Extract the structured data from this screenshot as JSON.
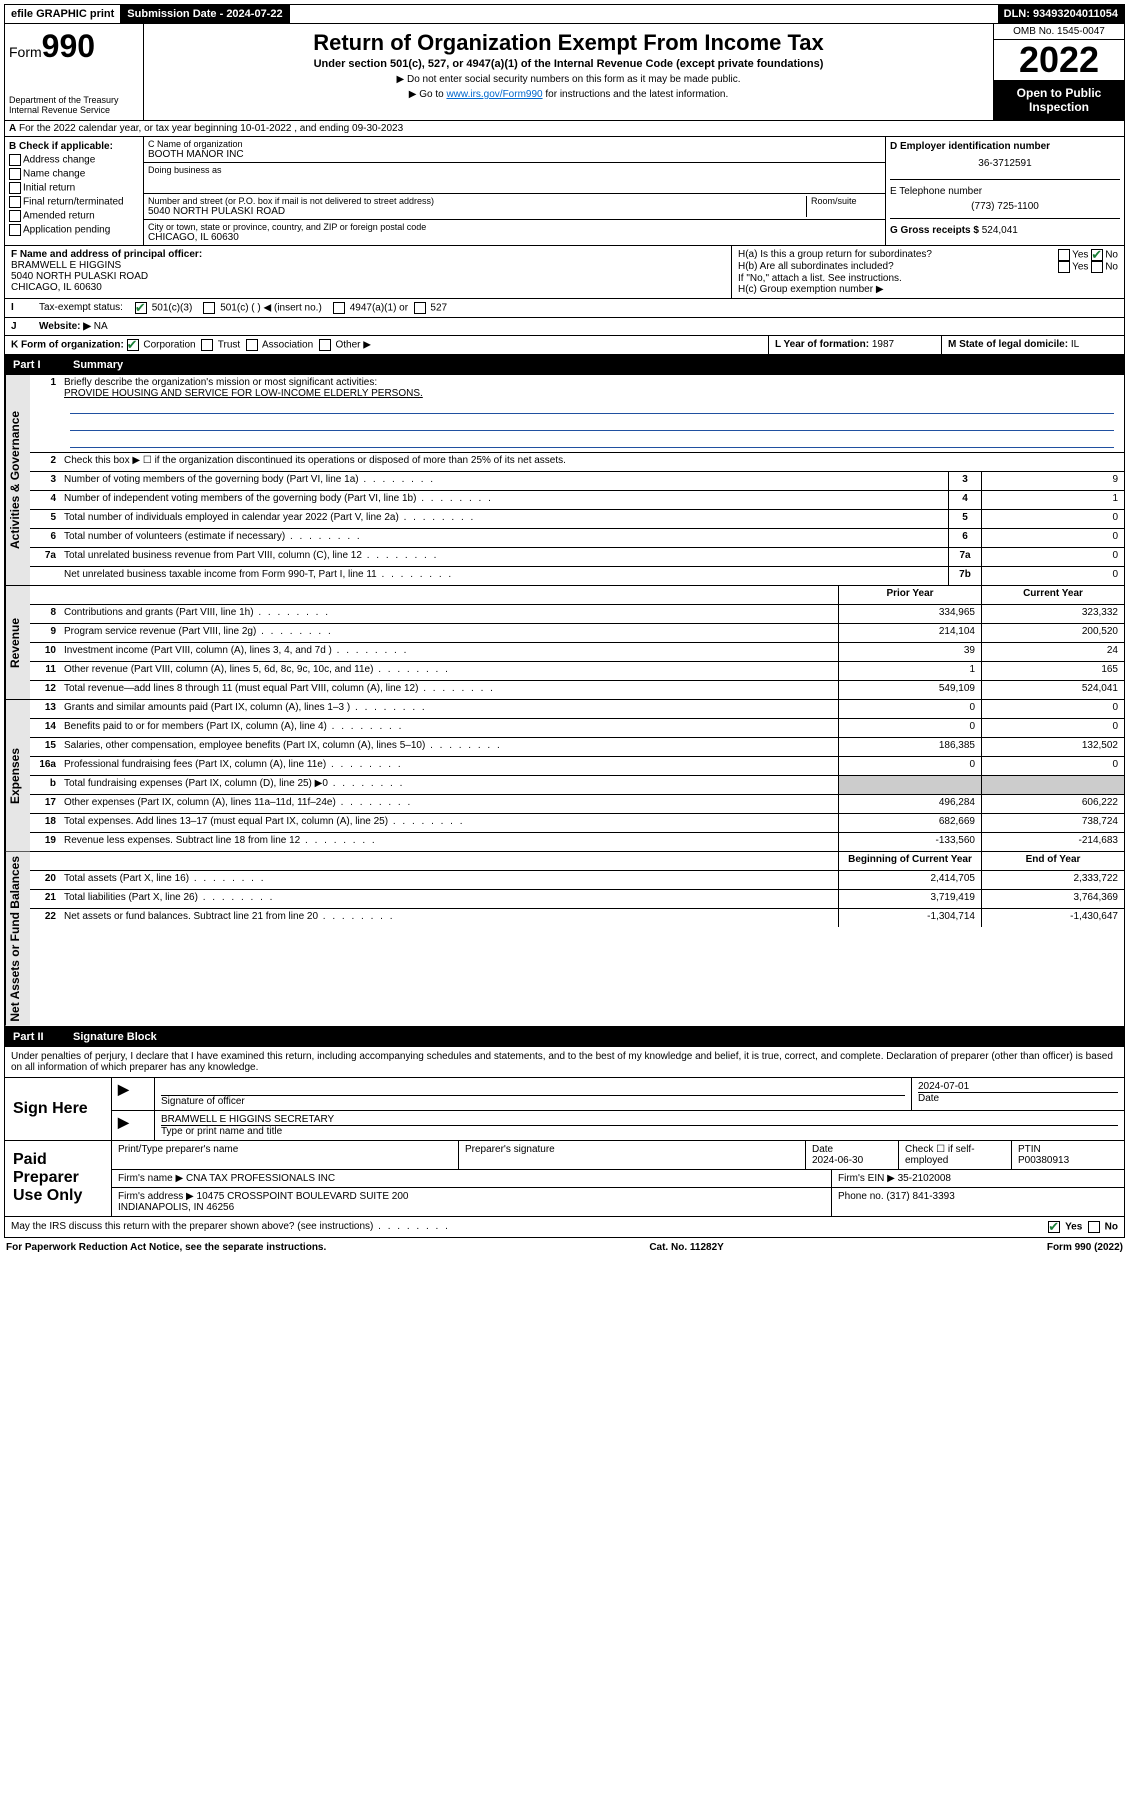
{
  "topbar": {
    "efile": "efile GRAPHIC print",
    "subdate_label": "Submission Date - 2024-07-22",
    "dln": "DLN: 93493204011054"
  },
  "header": {
    "form_prefix": "Form",
    "form_num": "990",
    "dept": "Department of the Treasury Internal Revenue Service",
    "title": "Return of Organization Exempt From Income Tax",
    "sub": "Under section 501(c), 527, or 4947(a)(1) of the Internal Revenue Code (except private foundations)",
    "note1": "▶ Do not enter social security numbers on this form as it may be made public.",
    "note2_pre": "▶ Go to ",
    "note2_link": "www.irs.gov/Form990",
    "note2_post": " for instructions and the latest information.",
    "omb": "OMB No. 1545-0047",
    "year": "2022",
    "open": "Open to Public Inspection"
  },
  "rowA": {
    "text": "For the 2022 calendar year, or tax year beginning 10-01-2022   , and ending 09-30-2023"
  },
  "B": {
    "title": "B Check if applicable:",
    "items": [
      "Address change",
      "Name change",
      "Initial return",
      "Final return/terminated",
      "Amended return",
      "Application pending"
    ]
  },
  "C": {
    "label": "C Name of organization",
    "name": "BOOTH MANOR INC",
    "dba_label": "Doing business as",
    "addr_label": "Number and street (or P.O. box if mail is not delivered to street address)",
    "room_label": "Room/suite",
    "addr": "5040 NORTH PULASKI ROAD",
    "city_label": "City or town, state or province, country, and ZIP or foreign postal code",
    "city": "CHICAGO, IL  60630"
  },
  "D": {
    "label": "D Employer identification number",
    "val": "36-3712591"
  },
  "E": {
    "label": "E Telephone number",
    "val": "(773) 725-1100"
  },
  "G": {
    "label": "G Gross receipts $",
    "val": "524,041"
  },
  "F": {
    "label": "F Name and address of principal officer:",
    "name": "BRAMWELL E HIGGINS",
    "addr1": "5040 NORTH PULASKI ROAD",
    "addr2": "CHICAGO, IL  60630"
  },
  "H": {
    "a": "H(a)  Is this a group return for subordinates?",
    "b": "H(b)  Are all subordinates included?",
    "note": "If \"No,\" attach a list. See instructions.",
    "c": "H(c)  Group exemption number ▶",
    "yes": "Yes",
    "no": "No"
  },
  "I": {
    "label": "Tax-exempt status:",
    "opts": [
      "501(c)(3)",
      "501(c) (  ) ◀ (insert no.)",
      "4947(a)(1) or",
      "527"
    ]
  },
  "J": {
    "label": "Website: ▶",
    "val": " NA"
  },
  "K": {
    "label": "K Form of organization:",
    "opts": [
      "Corporation",
      "Trust",
      "Association",
      "Other ▶"
    ]
  },
  "L": {
    "label": "L Year of formation: ",
    "val": "1987"
  },
  "M": {
    "label": "M State of legal domicile: ",
    "val": "IL"
  },
  "parts": {
    "p1": "Part I",
    "p1t": "Summary",
    "p2": "Part II",
    "p2t": "Signature Block"
  },
  "vlabels": {
    "gov": "Activities & Governance",
    "rev": "Revenue",
    "exp": "Expenses",
    "net": "Net Assets or Fund Balances"
  },
  "summary": {
    "l1": "Briefly describe the organization's mission or most significant activities:",
    "l1text": "PROVIDE HOUSING AND SERVICE FOR LOW-INCOME ELDERLY PERSONS.",
    "l2": "Check this box ▶ ☐  if the organization discontinued its operations or disposed of more than 25% of its net assets.",
    "lines_gov": [
      {
        "n": "3",
        "t": "Number of voting members of the governing body (Part VI, line 1a)",
        "box": "3",
        "v": "9"
      },
      {
        "n": "4",
        "t": "Number of independent voting members of the governing body (Part VI, line 1b)",
        "box": "4",
        "v": "1"
      },
      {
        "n": "5",
        "t": "Total number of individuals employed in calendar year 2022 (Part V, line 2a)",
        "box": "5",
        "v": "0"
      },
      {
        "n": "6",
        "t": "Total number of volunteers (estimate if necessary)",
        "box": "6",
        "v": "0"
      },
      {
        "n": "7a",
        "t": "Total unrelated business revenue from Part VIII, column (C), line 12",
        "box": "7a",
        "v": "0"
      },
      {
        "n": "",
        "t": "Net unrelated business taxable income from Form 990-T, Part I, line 11",
        "box": "7b",
        "v": "0"
      }
    ],
    "col_hdr": {
      "prior": "Prior Year",
      "current": "Current Year"
    },
    "lines_rev": [
      {
        "n": "8",
        "t": "Contributions and grants (Part VIII, line 1h)",
        "p": "334,965",
        "c": "323,332"
      },
      {
        "n": "9",
        "t": "Program service revenue (Part VIII, line 2g)",
        "p": "214,104",
        "c": "200,520"
      },
      {
        "n": "10",
        "t": "Investment income (Part VIII, column (A), lines 3, 4, and 7d )",
        "p": "39",
        "c": "24"
      },
      {
        "n": "11",
        "t": "Other revenue (Part VIII, column (A), lines 5, 6d, 8c, 9c, 10c, and 11e)",
        "p": "1",
        "c": "165"
      },
      {
        "n": "12",
        "t": "Total revenue—add lines 8 through 11 (must equal Part VIII, column (A), line 12)",
        "p": "549,109",
        "c": "524,041"
      }
    ],
    "lines_exp": [
      {
        "n": "13",
        "t": "Grants and similar amounts paid (Part IX, column (A), lines 1–3 )",
        "p": "0",
        "c": "0"
      },
      {
        "n": "14",
        "t": "Benefits paid to or for members (Part IX, column (A), line 4)",
        "p": "0",
        "c": "0"
      },
      {
        "n": "15",
        "t": "Salaries, other compensation, employee benefits (Part IX, column (A), lines 5–10)",
        "p": "186,385",
        "c": "132,502"
      },
      {
        "n": "16a",
        "t": "Professional fundraising fees (Part IX, column (A), line 11e)",
        "p": "0",
        "c": "0"
      },
      {
        "n": "b",
        "t": "Total fundraising expenses (Part IX, column (D), line 25) ▶0",
        "p": "",
        "c": ""
      },
      {
        "n": "17",
        "t": "Other expenses (Part IX, column (A), lines 11a–11d, 11f–24e)",
        "p": "496,284",
        "c": "606,222"
      },
      {
        "n": "18",
        "t": "Total expenses. Add lines 13–17 (must equal Part IX, column (A), line 25)",
        "p": "682,669",
        "c": "738,724"
      },
      {
        "n": "19",
        "t": "Revenue less expenses. Subtract line 18 from line 12",
        "p": "-133,560",
        "c": "-214,683"
      }
    ],
    "net_hdr": {
      "beg": "Beginning of Current Year",
      "end": "End of Year"
    },
    "lines_net": [
      {
        "n": "20",
        "t": "Total assets (Part X, line 16)",
        "p": "2,414,705",
        "c": "2,333,722"
      },
      {
        "n": "21",
        "t": "Total liabilities (Part X, line 26)",
        "p": "3,719,419",
        "c": "3,764,369"
      },
      {
        "n": "22",
        "t": "Net assets or fund balances. Subtract line 21 from line 20",
        "p": "-1,304,714",
        "c": "-1,430,647"
      }
    ]
  },
  "sig": {
    "penalty": "Under penalties of perjury, I declare that I have examined this return, including accompanying schedules and statements, and to the best of my knowledge and belief, it is true, correct, and complete. Declaration of preparer (other than officer) is based on all information of which preparer has any knowledge.",
    "sign_here": "Sign Here",
    "sig_officer": "Signature of officer",
    "date": "Date",
    "sig_date": "2024-07-01",
    "name_title": "BRAMWELL E HIGGINS  SECRETARY",
    "type_name": "Type or print name and title",
    "paid": "Paid Preparer Use Only",
    "prep_name_label": "Print/Type preparer's name",
    "prep_sig_label": "Preparer's signature",
    "prep_date_label": "Date",
    "prep_date": "2024-06-30",
    "check_self": "Check ☐ if self-employed",
    "ptin_label": "PTIN",
    "ptin": "P00380913",
    "firm_name_label": "Firm's name    ▶",
    "firm_name": "CNA TAX PROFESSIONALS INC",
    "firm_ein_label": "Firm's EIN ▶",
    "firm_ein": "35-2102008",
    "firm_addr_label": "Firm's address ▶",
    "firm_addr": "10475 CROSSPOINT BOULEVARD SUITE 200\nINDIANAPOLIS, IN  46256",
    "phone_label": "Phone no.",
    "phone": "(317) 841-3393",
    "discuss": "May the IRS discuss this return with the preparer shown above? (see instructions)",
    "yes": "Yes",
    "no": "No"
  },
  "footer": {
    "left": "For Paperwork Reduction Act Notice, see the separate instructions.",
    "mid": "Cat. No. 11282Y",
    "right": "Form 990 (2022)"
  }
}
